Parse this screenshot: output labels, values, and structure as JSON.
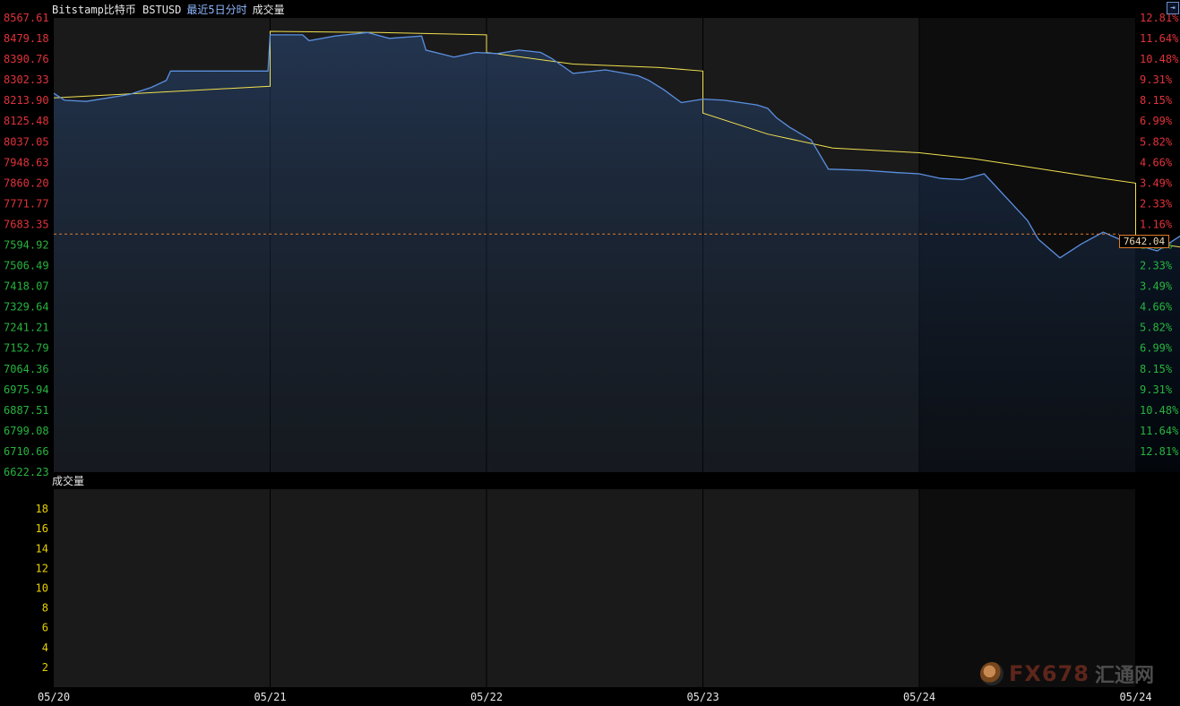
{
  "header": {
    "symbol": "Bitstamp比特币 BSTUSD",
    "period": "最近5日分时",
    "volume_label": "成交量"
  },
  "volume_panel": {
    "title": "成交量"
  },
  "corner_button": {
    "icon": "window-toggle-icon",
    "glyph": "⇥"
  },
  "current_price": "7642.04",
  "watermark": {
    "text": "FX678",
    "cn": "汇通网"
  },
  "colors": {
    "up": "#e0323a",
    "down": "#27b43e",
    "price_line": "#5b8fe0",
    "avg_line": "#f0e050",
    "ref_line": "#e07a2a",
    "volume_axis": "#e8d200",
    "date_labels": "#e6e6e6"
  },
  "chart_data": {
    "type": "line",
    "title": "Bitstamp比特币 BSTUSD",
    "xlabel": "",
    "ylabel": "",
    "ylim": [
      6622.23,
      8567.61
    ],
    "reference_price": 7642.04,
    "x_ticks": [
      "05/20",
      "05/21",
      "05/22",
      "05/23",
      "05/24",
      "05/24"
    ],
    "y_ticks_up": [
      "8567.61",
      "8479.18",
      "8390.76",
      "8302.33",
      "8213.90",
      "8125.48",
      "8037.05",
      "7948.63",
      "7860.20",
      "7771.77",
      "7683.35"
    ],
    "y_ticks_down": [
      "7594.92",
      "7506.49",
      "7418.07",
      "7329.64",
      "7241.21",
      "7152.79",
      "7064.36",
      "6975.94",
      "6887.51",
      "6799.08",
      "6710.66",
      "6622.23"
    ],
    "pct_ticks_up": [
      "12.81%",
      "11.64%",
      "10.48%",
      "9.31%",
      "8.15%",
      "6.99%",
      "5.82%",
      "4.66%",
      "3.49%",
      "2.33%",
      "1.16%"
    ],
    "pct_ticks_down": [
      "1.16%",
      "2.33%",
      "3.49%",
      "4.66%",
      "5.82%",
      "6.99%",
      "8.15%",
      "9.31%",
      "10.48%",
      "11.64%",
      "12.81%"
    ],
    "volume_ticks": [
      "18",
      "16",
      "14",
      "12",
      "10",
      "8",
      "6",
      "4",
      "2"
    ],
    "volume_ylim": [
      0,
      20
    ],
    "series": [
      {
        "values": [
          [
            0,
            8245
          ],
          [
            0.05,
            8215
          ],
          [
            0.15,
            8210
          ],
          [
            0.25,
            8225
          ],
          [
            0.35,
            8240
          ],
          [
            0.45,
            8270
          ],
          [
            0.52,
            8300
          ],
          [
            0.54,
            8340
          ],
          [
            0.99,
            8340
          ],
          [
            1.0,
            8495
          ],
          [
            1.15,
            8495
          ],
          [
            1.18,
            8470
          ],
          [
            1.3,
            8490
          ],
          [
            1.45,
            8505
          ],
          [
            1.55,
            8480
          ],
          [
            1.7,
            8490
          ],
          [
            1.72,
            8430
          ],
          [
            1.85,
            8400
          ],
          [
            1.95,
            8420
          ],
          [
            2.05,
            8415
          ],
          [
            2.15,
            8430
          ],
          [
            2.25,
            8420
          ],
          [
            2.3,
            8395
          ],
          [
            2.4,
            8330
          ],
          [
            2.55,
            8345
          ],
          [
            2.7,
            8320
          ],
          [
            2.75,
            8300
          ],
          [
            2.82,
            8260
          ],
          [
            2.9,
            8205
          ],
          [
            3.0,
            8220
          ],
          [
            3.1,
            8215
          ],
          [
            3.25,
            8195
          ],
          [
            3.3,
            8180
          ],
          [
            3.34,
            8140
          ],
          [
            3.4,
            8100
          ],
          [
            3.5,
            8045
          ],
          [
            3.58,
            7920
          ],
          [
            3.75,
            7915
          ],
          [
            3.9,
            7905
          ],
          [
            4.0,
            7900
          ],
          [
            4.1,
            7880
          ],
          [
            4.2,
            7875
          ],
          [
            4.3,
            7900
          ],
          [
            4.5,
            7700
          ],
          [
            4.55,
            7620
          ],
          [
            4.65,
            7540
          ],
          [
            4.75,
            7600
          ],
          [
            4.85,
            7650
          ],
          [
            4.95,
            7610
          ],
          [
            5.1,
            7570
          ],
          [
            5.25,
            7660
          ],
          [
            5.35,
            7645
          ],
          [
            5.4,
            7660
          ]
        ]
      },
      {
        "values": [
          [
            0,
            8225
          ],
          [
            0.5,
            8250
          ],
          [
            1.0,
            8275
          ],
          [
            1.0,
            8510
          ],
          [
            1.5,
            8505
          ],
          [
            2.0,
            8495
          ],
          [
            2.0,
            8420
          ],
          [
            2.4,
            8370
          ],
          [
            2.8,
            8355
          ],
          [
            3.0,
            8340
          ],
          [
            3.0,
            8160
          ],
          [
            3.3,
            8070
          ],
          [
            3.6,
            8010
          ],
          [
            4.0,
            7990
          ],
          [
            4.25,
            7965
          ],
          [
            4.5,
            7930
          ],
          [
            4.85,
            7880
          ],
          [
            5.0,
            7860
          ],
          [
            5.0,
            7620
          ],
          [
            5.1,
            7600
          ],
          [
            5.3,
            7575
          ],
          [
            5.4,
            7580
          ]
        ]
      }
    ]
  }
}
